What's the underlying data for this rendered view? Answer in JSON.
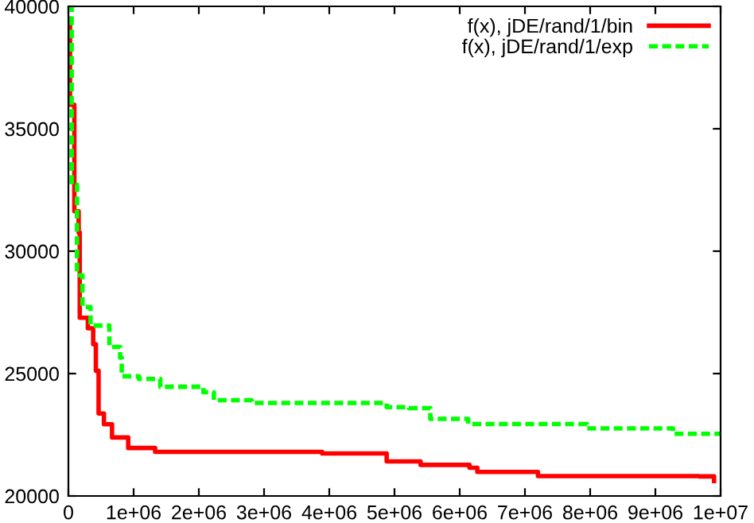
{
  "chart_data": {
    "type": "step",
    "series": [
      {
        "name": "f(x), jDE/rand/1/bin",
        "color": "#ff0000",
        "line_style": "solid",
        "x": [
          0,
          25000,
          91000,
          157000,
          174000,
          298000,
          380000,
          421000,
          463000,
          545000,
          669000,
          917000,
          1330000,
          3480000,
          3890000,
          4880000,
          5400000,
          6150000,
          6270000,
          7200000,
          9100000,
          9670000,
          9900000
        ],
        "values": [
          39500,
          35980,
          31630,
          30760,
          27280,
          26850,
          26200,
          25110,
          23370,
          22930,
          22390,
          21960,
          21800,
          21800,
          21740,
          21410,
          21270,
          21150,
          20980,
          20810,
          20810,
          20800,
          20610
        ]
      },
      {
        "name": "f(x), jDE/rand/1/exp",
        "color": "#00ff00",
        "line_style": "dashed",
        "x": [
          0,
          50000,
          132000,
          215000,
          339000,
          628000,
          793000,
          818000,
          1080000,
          1410000,
          2070000,
          2230000,
          2810000,
          4880000,
          5220000,
          5550000,
          6130000,
          7950000,
          9270000,
          10000000
        ],
        "values": [
          40000,
          32720,
          29020,
          27720,
          26960,
          26090,
          25650,
          24890,
          24780,
          24460,
          24240,
          23910,
          23800,
          23630,
          23590,
          23150,
          22940,
          22760,
          22540,
          22500
        ]
      }
    ],
    "xlim": [
      0,
      10000000
    ],
    "xticks": [
      0,
      {
        "value": 1000000,
        "label": "1e+06"
      },
      {
        "value": 2000000,
        "label": "2e+06"
      },
      {
        "value": 3000000,
        "label": "3e+06"
      },
      {
        "value": 4000000,
        "label": "4e+06"
      },
      {
        "value": 5000000,
        "label": "5e+06"
      },
      {
        "value": 6000000,
        "label": "6e+06"
      },
      {
        "value": 7000000,
        "label": "7e+06"
      },
      {
        "value": 8000000,
        "label": "8e+06"
      },
      {
        "value": 9000000,
        "label": "9e+06"
      },
      {
        "value": 10000000,
        "label": "1e+07"
      }
    ],
    "ylim": [
      20000,
      40000
    ],
    "yticks": [
      20000,
      25000,
      30000,
      35000,
      40000
    ],
    "grid": false,
    "legend": "top right"
  }
}
